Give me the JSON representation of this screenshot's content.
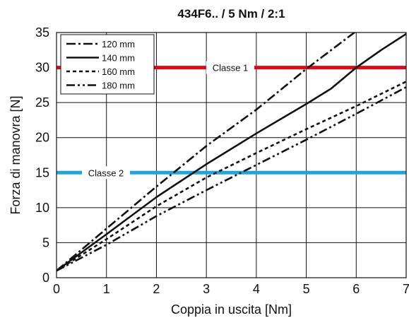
{
  "chart_data": {
    "type": "line",
    "title": "434F6.. / 5 Nm / 2:1",
    "xlabel": "Coppia in uscita [Nm]",
    "ylabel": "Forza di manovra [N]",
    "xlim": [
      0,
      7
    ],
    "ylim": [
      0,
      35
    ],
    "xticks": [
      "0",
      "1",
      "2",
      "3",
      "4",
      "5",
      "6",
      "7"
    ],
    "yticks": [
      "0",
      "5",
      "10",
      "15",
      "20",
      "25",
      "30",
      "35"
    ],
    "grid": true,
    "legend_position": "top-left",
    "series": [
      {
        "name": "120 mm",
        "style": "dash-dot",
        "x": [
          0,
          1,
          2,
          3,
          4,
          5,
          6
        ],
        "y": [
          1,
          7,
          13,
          18.8,
          24,
          29.8,
          35.2
        ]
      },
      {
        "name": "140 mm",
        "style": "solid",
        "x": [
          0,
          1,
          2,
          3,
          4,
          5,
          5.5,
          6,
          6.5,
          7
        ],
        "y": [
          1,
          6.2,
          11.5,
          16.2,
          20.6,
          24.8,
          27,
          30,
          32.5,
          34.8
        ]
      },
      {
        "name": "160 mm",
        "style": "dotted",
        "x": [
          0,
          1,
          2,
          3,
          4,
          5,
          6,
          7
        ],
        "y": [
          1,
          5.5,
          10.2,
          14.3,
          17.8,
          21.2,
          24.5,
          28
        ]
      },
      {
        "name": "180 mm",
        "style": "dash-dot-dot",
        "x": [
          0,
          1,
          2,
          3,
          4,
          5,
          6,
          7
        ],
        "y": [
          1,
          4.7,
          8.8,
          12.5,
          16.1,
          19.7,
          23.4,
          27.2
        ]
      }
    ],
    "reference_lines": [
      {
        "label": "Classe 1",
        "y": 30,
        "color": "#e30613"
      },
      {
        "label": "Classe 2",
        "y": 15,
        "color": "#1ea5e0"
      }
    ]
  }
}
